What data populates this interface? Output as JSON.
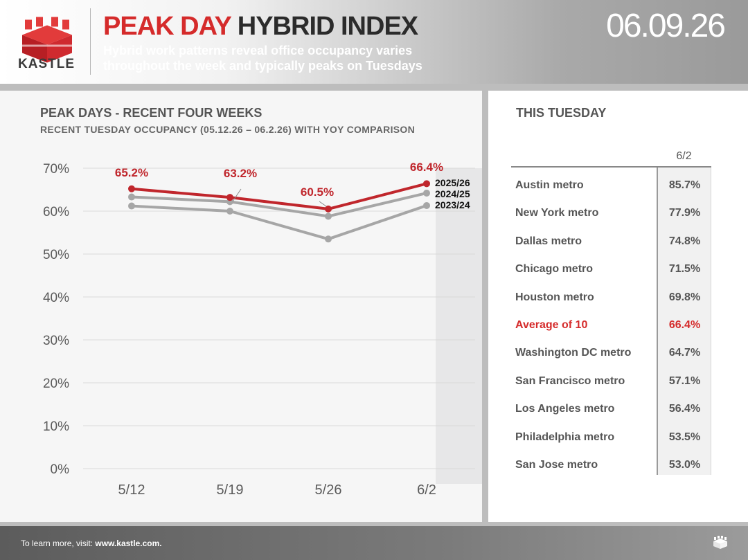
{
  "header": {
    "logo_text": "KASTLE",
    "title_red": "PEAK DAY",
    "title_dark": "HYBRID INDEX",
    "subtitle": "Hybrid work patterns reveal office occupancy varies throughout the week and typically peaks on Tuesdays",
    "date": "06.09.26"
  },
  "chart_panel": {
    "title": "PEAK DAYS - RECENT FOUR WEEKS",
    "subtitle": "RECENT TUESDAY OCCUPANCY (05.12.26 – 06.2.26) WITH YOY COMPARISON"
  },
  "chart_data": {
    "type": "line",
    "categories": [
      "5/12",
      "5/19",
      "5/26",
      "6/2"
    ],
    "ylim": [
      0,
      70
    ],
    "yticks": [
      "0%",
      "10%",
      "20%",
      "30%",
      "40%",
      "50%",
      "60%",
      "70%"
    ],
    "grid": true,
    "legend": "end-of-line labels",
    "series": [
      {
        "name": "2025/26",
        "values": [
          65.2,
          63.2,
          60.5,
          66.4
        ],
        "color": "#c0262c",
        "labels": [
          "65.2%",
          "63.2%",
          "60.5%",
          "66.4%"
        ]
      },
      {
        "name": "2024/25",
        "values": [
          63.3,
          62.2,
          58.8,
          64.2
        ],
        "color": "#a6a6a6"
      },
      {
        "name": "2023/24",
        "values": [
          61.2,
          60.0,
          53.5,
          61.3
        ],
        "color": "#a6a6a6"
      }
    ]
  },
  "this_tuesday": {
    "title": "THIS TUESDAY",
    "column_header": "6/2",
    "rows": [
      {
        "metro": "Austin metro",
        "value": "85.7%"
      },
      {
        "metro": "New York metro",
        "value": "77.9%"
      },
      {
        "metro": "Dallas metro",
        "value": "74.8%"
      },
      {
        "metro": "Chicago metro",
        "value": "71.5%"
      },
      {
        "metro": "Houston metro",
        "value": "69.8%"
      },
      {
        "metro": "Average of 10",
        "value": "66.4%",
        "highlight": true
      },
      {
        "metro": "Washington DC metro",
        "value": "64.7%"
      },
      {
        "metro": "San Francisco metro",
        "value": "57.1%"
      },
      {
        "metro": "Los Angeles metro",
        "value": "56.4%"
      },
      {
        "metro": "Philadelphia metro",
        "value": "53.5%"
      },
      {
        "metro": "San Jose metro",
        "value": "53.0%"
      }
    ]
  },
  "footer": {
    "text": "To learn more, visit: ",
    "link": "www.kastle.com."
  },
  "colors": {
    "brand_red": "#d52b2b",
    "series_gray": "#a6a6a6"
  }
}
